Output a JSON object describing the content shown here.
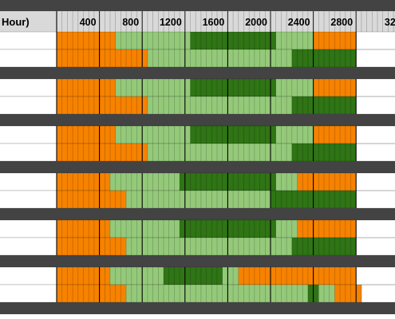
{
  "header": {
    "first_label": "Hour)",
    "ticks": [
      "400",
      "800",
      "1200",
      "1600",
      "2000",
      "2400",
      "2800",
      "32"
    ]
  },
  "colors": {
    "orange": "#f68200",
    "light_green": "#94c97a",
    "dark_green": "#2f7415",
    "separator": "#434343",
    "header_bg": "#d9d9d9"
  },
  "legend_keys": {
    "O": "orange",
    "L": "light_green",
    "D": "dark_green"
  },
  "groups": [
    {
      "rows": [
        "OOOOOOOOOOOLLLLLLLLLLLLLLDDDDDDDDDDDDDDDDLLLLLLLOOOOOOOO",
        "OOOOOOOOOOOOOOOOOLLLLLLLLLLLLLLLLLLLLLLLLLLLDDDDDDDDDDDD"
      ]
    },
    {
      "rows": [
        "OOOOOOOOOOOLLLLLLLLLLLLLLDDDDDDDDDDDDDDDDLLLLLLLOOOOOOOO",
        "OOOOOOOOOOOOOOOOOLLLLLLLLLLLLLLLLLLLLLLLLLLLDDDDDDDDDDDD"
      ]
    },
    {
      "rows": [
        "OOOOOOOOOOOLLLLLLLLLLLLLLDDDDDDDDDDDDDDDDLLLLLLLOOOOOOOO",
        "OOOOOOOOOOOOOOOOOLLLLLLLLLLLLLLLLLLLLLLLLLLLDDDDDDDDDDDD"
      ]
    },
    {
      "rows": [
        "OOOOOOOOOOLLLLLLLLLLLLLDDDDDDDDDDDDDDDDDDLLLLOOOOOOOOOOO",
        "OOOOOOOOOOOOOLLLLLLLLLLLLLLLLLLLLLLLLLLLDDDDDDDDDDDDDDDD"
      ]
    },
    {
      "rows": [
        "OOOOOOOOOOLLLLLLLLLLLLLDDDDDDDDDDDDDDDDDDLLLLOOOOOOOOOOO",
        "OOOOOOOOOOOOOLLLLLLLLLLLLLLLLLLLLLLLLLLLLLLLDDDDDDDDDDDD"
      ]
    },
    {
      "rows": [
        "OOOOOOOOOOLLLLLLLLLLDDDDDDDDDDDLLLOOOOOOOOOOOOOOOOOOOOOO",
        "OOOOOOOOOOOOOLLLLLLLLLLLLLLLLLLLLLLLLLLLLLLLLLLDDLLLOOOOO"
      ]
    }
  ]
}
